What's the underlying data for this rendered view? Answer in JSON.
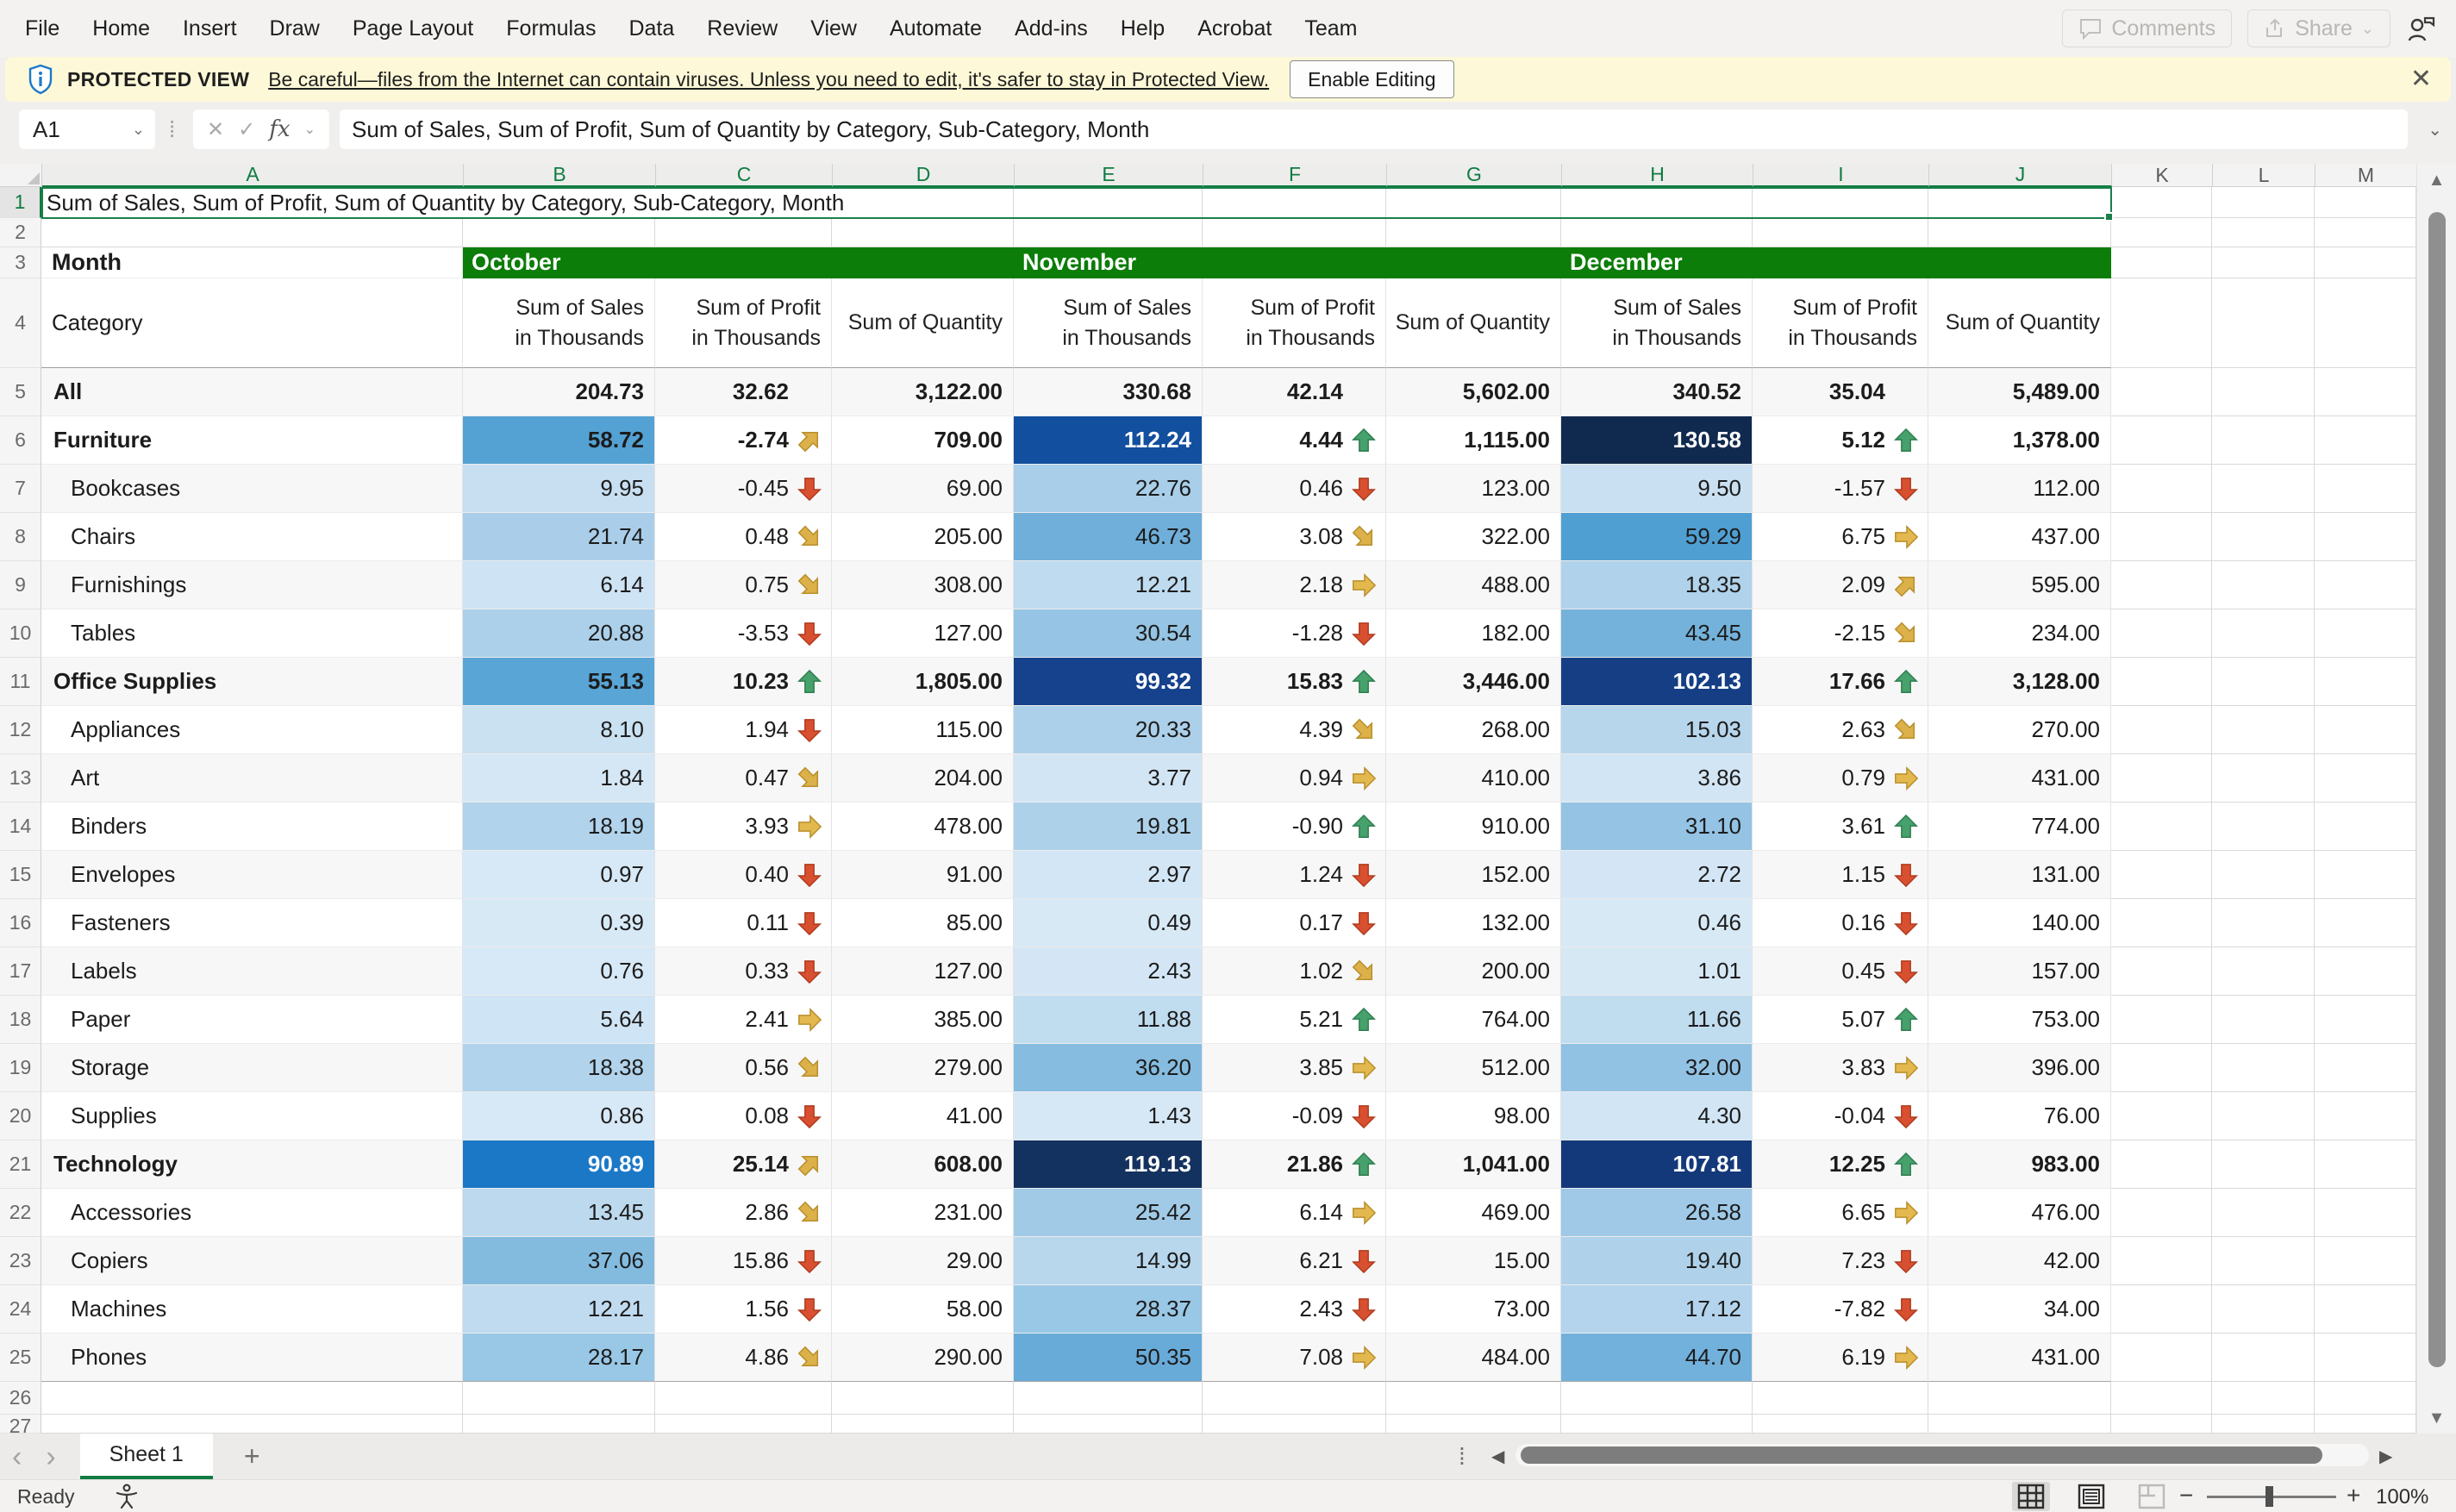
{
  "menu": {
    "items": [
      "File",
      "Home",
      "Insert",
      "Draw",
      "Page Layout",
      "Formulas",
      "Data",
      "Review",
      "View",
      "Automate",
      "Add-ins",
      "Help",
      "Acrobat",
      "Team"
    ]
  },
  "top_right": {
    "comments_label": "Comments",
    "share_label": "Share"
  },
  "banner": {
    "title": "PROTECTED VIEW",
    "message": "Be careful—files from the Internet can contain viruses. Unless you need to edit, it's safer to stay in Protected View.",
    "button": "Enable Editing"
  },
  "formula_bar": {
    "name_box": "A1",
    "fx_label": "fx",
    "formula": "Sum of Sales, Sum of Profit, Sum of Quantity by Category, Sub-Category, Month"
  },
  "sheet": {
    "column_letters": [
      "A",
      "B",
      "C",
      "D",
      "E",
      "F",
      "G",
      "H",
      "I",
      "J",
      "K",
      "L",
      "M"
    ],
    "selected_column_count": 10,
    "a1_text": "Sum of Sales, Sum of Profit, Sum of Quantity by Category, Sub-Category, Month",
    "row3": {
      "label": "Month",
      "months": [
        "October",
        "November",
        "December"
      ]
    },
    "row4": {
      "label": "Category",
      "measures": [
        [
          "Sum of Sales",
          "in Thousands"
        ],
        [
          "Sum of Profit",
          "in Thousands"
        ],
        [
          "Sum of Quantity"
        ]
      ]
    },
    "rows": [
      {
        "n": 5,
        "label": "All",
        "bold": true,
        "indent": 0,
        "cells": [
          {
            "v": "204.73"
          },
          {
            "v": "32.62"
          },
          {
            "v": "3,122.00"
          },
          {
            "v": "330.68"
          },
          {
            "v": "42.14"
          },
          {
            "v": "5,602.00"
          },
          {
            "v": "340.52"
          },
          {
            "v": "35.04"
          },
          {
            "v": "5,489.00"
          }
        ]
      },
      {
        "n": 6,
        "label": "Furniture",
        "bold": true,
        "indent": 0,
        "cells": [
          {
            "v": "58.72",
            "bg": "#54A2D4"
          },
          {
            "v": "-2.74",
            "icon": "diag-up"
          },
          {
            "v": "709.00"
          },
          {
            "v": "112.24",
            "bg": "#124F9E",
            "fg": "#ffffff"
          },
          {
            "v": "4.44",
            "icon": "up"
          },
          {
            "v": "1,115.00"
          },
          {
            "v": "130.58",
            "bg": "#10294E",
            "fg": "#ffffff"
          },
          {
            "v": "5.12",
            "icon": "up"
          },
          {
            "v": "1,378.00"
          }
        ]
      },
      {
        "n": 7,
        "label": "Bookcases",
        "bold": false,
        "indent": 1,
        "cells": [
          {
            "v": "9.95",
            "bg": "#C7DFF1"
          },
          {
            "v": "-0.45",
            "icon": "down"
          },
          {
            "v": "69.00"
          },
          {
            "v": "22.76",
            "bg": "#A8CEE9"
          },
          {
            "v": "0.46",
            "icon": "down"
          },
          {
            "v": "123.00"
          },
          {
            "v": "9.50",
            "bg": "#C8E0F1"
          },
          {
            "v": "-1.57",
            "icon": "down"
          },
          {
            "v": "112.00"
          }
        ]
      },
      {
        "n": 8,
        "label": "Chairs",
        "bold": false,
        "indent": 1,
        "cells": [
          {
            "v": "21.74",
            "bg": "#AACEE9"
          },
          {
            "v": "0.48",
            "icon": "diag-down"
          },
          {
            "v": "205.00"
          },
          {
            "v": "46.73",
            "bg": "#6FAFDA"
          },
          {
            "v": "3.08",
            "icon": "diag-down"
          },
          {
            "v": "322.00"
          },
          {
            "v": "59.29",
            "bg": "#4F9FD3"
          },
          {
            "v": "6.75",
            "icon": "right"
          },
          {
            "v": "437.00"
          }
        ]
      },
      {
        "n": 9,
        "label": "Furnishings",
        "bold": false,
        "indent": 1,
        "cells": [
          {
            "v": "6.14",
            "bg": "#CEE3F3"
          },
          {
            "v": "0.75",
            "icon": "diag-down"
          },
          {
            "v": "308.00"
          },
          {
            "v": "12.21",
            "bg": "#BFDBEF"
          },
          {
            "v": "2.18",
            "icon": "right"
          },
          {
            "v": "488.00"
          },
          {
            "v": "18.35",
            "bg": "#B0D2EB"
          },
          {
            "v": "2.09",
            "icon": "diag-up"
          },
          {
            "v": "595.00"
          }
        ]
      },
      {
        "n": 10,
        "label": "Tables",
        "bold": false,
        "indent": 1,
        "cells": [
          {
            "v": "20.88",
            "bg": "#ACD0EA"
          },
          {
            "v": "-3.53",
            "icon": "down"
          },
          {
            "v": "127.00"
          },
          {
            "v": "30.54",
            "bg": "#95C4E4"
          },
          {
            "v": "-1.28",
            "icon": "down"
          },
          {
            "v": "182.00"
          },
          {
            "v": "43.45",
            "bg": "#74B2DB"
          },
          {
            "v": "-2.15",
            "icon": "diag-down"
          },
          {
            "v": "234.00"
          }
        ]
      },
      {
        "n": 11,
        "label": "Office Supplies",
        "bold": true,
        "indent": 0,
        "cells": [
          {
            "v": "55.13",
            "bg": "#58A5D6"
          },
          {
            "v": "10.23",
            "icon": "up"
          },
          {
            "v": "1,805.00"
          },
          {
            "v": "99.32",
            "bg": "#16418C",
            "fg": "#ffffff"
          },
          {
            "v": "15.83",
            "icon": "up"
          },
          {
            "v": "3,446.00"
          },
          {
            "v": "102.13",
            "bg": "#153E85",
            "fg": "#ffffff"
          },
          {
            "v": "17.66",
            "icon": "up"
          },
          {
            "v": "3,128.00"
          }
        ]
      },
      {
        "n": 12,
        "label": "Appliances",
        "bold": false,
        "indent": 1,
        "cells": [
          {
            "v": "8.10",
            "bg": "#CAE1F2"
          },
          {
            "v": "1.94",
            "icon": "down"
          },
          {
            "v": "115.00"
          },
          {
            "v": "20.33",
            "bg": "#ADD0EA"
          },
          {
            "v": "4.39",
            "icon": "diag-down"
          },
          {
            "v": "268.00"
          },
          {
            "v": "15.03",
            "bg": "#B7D6EC"
          },
          {
            "v": "2.63",
            "icon": "diag-down"
          },
          {
            "v": "270.00"
          }
        ]
      },
      {
        "n": 13,
        "label": "Art",
        "bold": false,
        "indent": 1,
        "cells": [
          {
            "v": "1.84",
            "bg": "#D5E7F5"
          },
          {
            "v": "0.47",
            "icon": "diag-down"
          },
          {
            "v": "204.00"
          },
          {
            "v": "3.77",
            "bg": "#D2E5F4"
          },
          {
            "v": "0.94",
            "icon": "right"
          },
          {
            "v": "410.00"
          },
          {
            "v": "3.86",
            "bg": "#D2E5F4"
          },
          {
            "v": "0.79",
            "icon": "right"
          },
          {
            "v": "431.00"
          }
        ]
      },
      {
        "n": 14,
        "label": "Binders",
        "bold": false,
        "indent": 1,
        "cells": [
          {
            "v": "18.19",
            "bg": "#B1D3EB"
          },
          {
            "v": "3.93",
            "icon": "right"
          },
          {
            "v": "478.00"
          },
          {
            "v": "19.81",
            "bg": "#AED1EA"
          },
          {
            "v": "-0.90",
            "icon": "up"
          },
          {
            "v": "910.00"
          },
          {
            "v": "31.10",
            "bg": "#94C3E4"
          },
          {
            "v": "3.61",
            "icon": "up"
          },
          {
            "v": "774.00"
          }
        ]
      },
      {
        "n": 15,
        "label": "Envelopes",
        "bold": false,
        "indent": 1,
        "cells": [
          {
            "v": "0.97",
            "bg": "#D7E8F6"
          },
          {
            "v": "0.40",
            "icon": "down"
          },
          {
            "v": "91.00"
          },
          {
            "v": "2.97",
            "bg": "#D3E6F5"
          },
          {
            "v": "1.24",
            "icon": "down"
          },
          {
            "v": "152.00"
          },
          {
            "v": "2.72",
            "bg": "#D4E6F5"
          },
          {
            "v": "1.15",
            "icon": "down"
          },
          {
            "v": "131.00"
          }
        ]
      },
      {
        "n": 16,
        "label": "Fasteners",
        "bold": false,
        "indent": 1,
        "cells": [
          {
            "v": "0.39",
            "bg": "#D8E9F6"
          },
          {
            "v": "0.11",
            "icon": "down"
          },
          {
            "v": "85.00"
          },
          {
            "v": "0.49",
            "bg": "#D8E9F6"
          },
          {
            "v": "0.17",
            "icon": "down"
          },
          {
            "v": "132.00"
          },
          {
            "v": "0.46",
            "bg": "#D8E9F6"
          },
          {
            "v": "0.16",
            "icon": "down"
          },
          {
            "v": "140.00"
          }
        ]
      },
      {
        "n": 17,
        "label": "Labels",
        "bold": false,
        "indent": 1,
        "cells": [
          {
            "v": "0.76",
            "bg": "#D7E8F6"
          },
          {
            "v": "0.33",
            "icon": "down"
          },
          {
            "v": "127.00"
          },
          {
            "v": "2.43",
            "bg": "#D4E6F5"
          },
          {
            "v": "1.02",
            "icon": "diag-down"
          },
          {
            "v": "200.00"
          },
          {
            "v": "1.01",
            "bg": "#D7E8F5"
          },
          {
            "v": "0.45",
            "icon": "down"
          },
          {
            "v": "157.00"
          }
        ]
      },
      {
        "n": 18,
        "label": "Paper",
        "bold": false,
        "indent": 1,
        "cells": [
          {
            "v": "5.64",
            "bg": "#CFE4F4"
          },
          {
            "v": "2.41",
            "icon": "right"
          },
          {
            "v": "385.00"
          },
          {
            "v": "11.88",
            "bg": "#C0DCEF"
          },
          {
            "v": "5.21",
            "icon": "up"
          },
          {
            "v": "764.00"
          },
          {
            "v": "11.66",
            "bg": "#C0DCEF"
          },
          {
            "v": "5.07",
            "icon": "up"
          },
          {
            "v": "753.00"
          }
        ]
      },
      {
        "n": 19,
        "label": "Storage",
        "bold": false,
        "indent": 1,
        "cells": [
          {
            "v": "18.38",
            "bg": "#B1D3EB"
          },
          {
            "v": "0.56",
            "icon": "diag-down"
          },
          {
            "v": "279.00"
          },
          {
            "v": "36.20",
            "bg": "#85BCE0"
          },
          {
            "v": "3.85",
            "icon": "right"
          },
          {
            "v": "512.00"
          },
          {
            "v": "32.00",
            "bg": "#92C2E3"
          },
          {
            "v": "3.83",
            "icon": "right"
          },
          {
            "v": "396.00"
          }
        ]
      },
      {
        "n": 20,
        "label": "Supplies",
        "bold": false,
        "indent": 1,
        "cells": [
          {
            "v": "0.86",
            "bg": "#D7E8F6"
          },
          {
            "v": "0.08",
            "icon": "down"
          },
          {
            "v": "41.00"
          },
          {
            "v": "1.43",
            "bg": "#D6E8F5"
          },
          {
            "v": "-0.09",
            "icon": "down"
          },
          {
            "v": "98.00"
          },
          {
            "v": "4.30",
            "bg": "#D1E5F4"
          },
          {
            "v": "-0.04",
            "icon": "down"
          },
          {
            "v": "76.00"
          }
        ]
      },
      {
        "n": 21,
        "label": "Technology",
        "bold": true,
        "indent": 0,
        "cells": [
          {
            "v": "90.89",
            "bg": "#1B78C7",
            "fg": "#ffffff"
          },
          {
            "v": "25.14",
            "icon": "diag-up"
          },
          {
            "v": "608.00"
          },
          {
            "v": "119.13",
            "bg": "#13325F",
            "fg": "#ffffff"
          },
          {
            "v": "21.86",
            "icon": "up"
          },
          {
            "v": "1,041.00"
          },
          {
            "v": "107.81",
            "bg": "#14397A",
            "fg": "#ffffff"
          },
          {
            "v": "12.25",
            "icon": "up"
          },
          {
            "v": "983.00"
          }
        ]
      },
      {
        "n": 22,
        "label": "Accessories",
        "bold": false,
        "indent": 1,
        "cells": [
          {
            "v": "13.45",
            "bg": "#BCD9EE"
          },
          {
            "v": "2.86",
            "icon": "diag-down"
          },
          {
            "v": "231.00"
          },
          {
            "v": "25.42",
            "bg": "#A1CAE7"
          },
          {
            "v": "6.14",
            "icon": "right"
          },
          {
            "v": "469.00"
          },
          {
            "v": "26.58",
            "bg": "#9FC9E7"
          },
          {
            "v": "6.65",
            "icon": "right"
          },
          {
            "v": "476.00"
          }
        ]
      },
      {
        "n": 23,
        "label": "Copiers",
        "bold": false,
        "indent": 1,
        "cells": [
          {
            "v": "37.06",
            "bg": "#83BBDF"
          },
          {
            "v": "15.86",
            "icon": "down"
          },
          {
            "v": "29.00"
          },
          {
            "v": "14.99",
            "bg": "#B8D7ED"
          },
          {
            "v": "6.21",
            "icon": "down"
          },
          {
            "v": "15.00"
          },
          {
            "v": "19.40",
            "bg": "#AFD2EA"
          },
          {
            "v": "7.23",
            "icon": "down"
          },
          {
            "v": "42.00"
          }
        ]
      },
      {
        "n": 24,
        "label": "Machines",
        "bold": false,
        "indent": 1,
        "cells": [
          {
            "v": "12.21",
            "bg": "#C0DBEF"
          },
          {
            "v": "1.56",
            "icon": "down"
          },
          {
            "v": "58.00"
          },
          {
            "v": "28.37",
            "bg": "#99C7E6"
          },
          {
            "v": "2.43",
            "icon": "down"
          },
          {
            "v": "73.00"
          },
          {
            "v": "17.12",
            "bg": "#B3D4EC"
          },
          {
            "v": "-7.82",
            "icon": "down"
          },
          {
            "v": "34.00"
          }
        ]
      },
      {
        "n": 25,
        "label": "Phones",
        "bold": false,
        "indent": 1,
        "cells": [
          {
            "v": "28.17",
            "bg": "#99C7E6"
          },
          {
            "v": "4.86",
            "icon": "diag-down"
          },
          {
            "v": "290.00"
          },
          {
            "v": "50.35",
            "bg": "#68AAD8"
          },
          {
            "v": "7.08",
            "icon": "right"
          },
          {
            "v": "484.00"
          },
          {
            "v": "44.70",
            "bg": "#72B1DB"
          },
          {
            "v": "6.19",
            "icon": "right"
          },
          {
            "v": "431.00"
          }
        ]
      }
    ]
  },
  "tab_bar": {
    "sheet_name": "Sheet 1",
    "add_sheet_label": "+"
  },
  "status_bar": {
    "left": "Ready",
    "zoom": "100%"
  },
  "colors": {
    "selection_green": "#107C41",
    "month_header_green": "#0B7D08",
    "banner_bg": "#FDF8D7",
    "shield_blue": "#1B7AC9"
  }
}
